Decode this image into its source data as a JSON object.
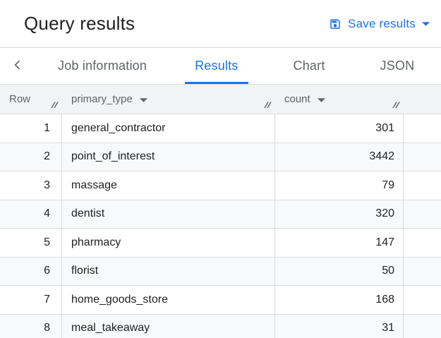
{
  "header": {
    "title": "Query results",
    "save_button": {
      "label": "Save results",
      "icon": "save-icon",
      "caret_icon": "chevron-down-icon"
    }
  },
  "tabs": {
    "back_icon": "chevron-left-icon",
    "items": [
      {
        "label": "Job information",
        "active": false
      },
      {
        "label": "Results",
        "active": true
      },
      {
        "label": "Chart",
        "active": false
      },
      {
        "label": "JSON",
        "active": false
      }
    ]
  },
  "table": {
    "columns": [
      {
        "label": "Row",
        "sortable": false,
        "resizable": true
      },
      {
        "label": "primary_type",
        "sortable": true,
        "resizable": true
      },
      {
        "label": "count",
        "sortable": true,
        "resizable": true
      }
    ],
    "rows": [
      {
        "num": "1",
        "primary_type": "general_contractor",
        "count": "301"
      },
      {
        "num": "2",
        "primary_type": "point_of_interest",
        "count": "3442"
      },
      {
        "num": "3",
        "primary_type": "massage",
        "count": "79"
      },
      {
        "num": "4",
        "primary_type": "dentist",
        "count": "320"
      },
      {
        "num": "5",
        "primary_type": "pharmacy",
        "count": "147"
      },
      {
        "num": "6",
        "primary_type": "florist",
        "count": "50"
      },
      {
        "num": "7",
        "primary_type": "home_goods_store",
        "count": "168"
      },
      {
        "num": "8",
        "primary_type": "meal_takeaway",
        "count": "31"
      }
    ]
  },
  "colors": {
    "accent": "#1a73e8",
    "text_primary": "#202124",
    "text_secondary": "#5f6368",
    "border": "#dadce0",
    "row_alt_bg": "#f8f9fa",
    "header_bg": "#f1f3f4"
  }
}
